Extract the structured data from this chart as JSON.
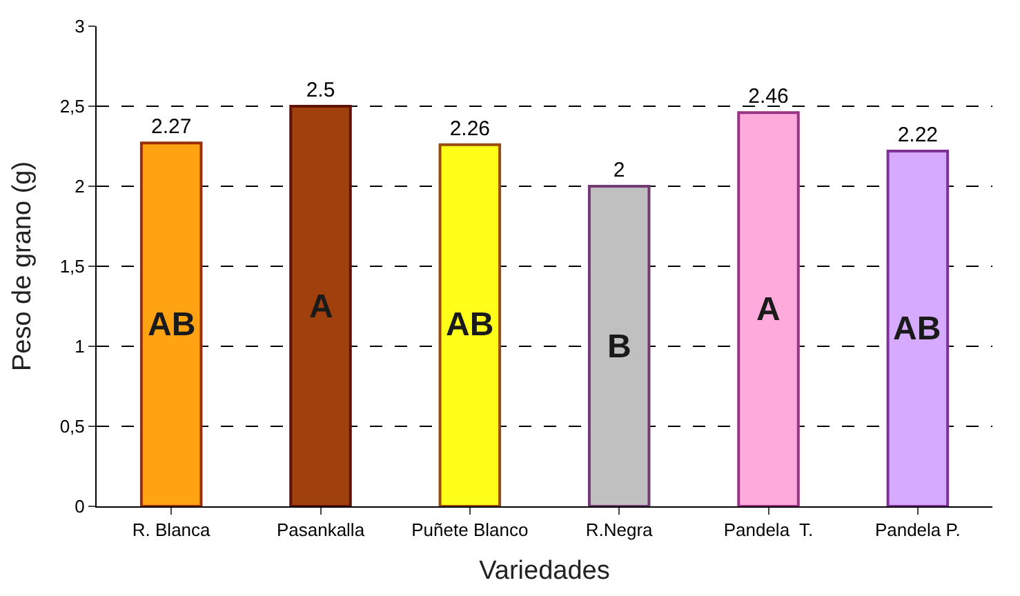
{
  "chart_data": {
    "type": "bar",
    "categories": [
      "R. Blanca",
      "Pasankalla",
      "Puñete Blanco",
      "R.Negra",
      "Pandela  T.",
      "Pandela P."
    ],
    "values": [
      2.27,
      2.5,
      2.26,
      2,
      2.46,
      2.22
    ],
    "colors": [
      "#ffa312",
      "#a0410d",
      "#ffff1a",
      "#c0c0c0",
      "#ffaadc",
      "#d5aaff"
    ],
    "xlabel": "Variedades",
    "ylabel": "Peso de grano (g)",
    "ylim": [
      0,
      3
    ],
    "yticks": [
      0,
      {
        "value": 0.5,
        "label": "0,5"
      },
      1,
      {
        "value": 1.5,
        "label": "1,5"
      },
      2,
      {
        "value": 2.5,
        "label": "2,5"
      },
      3
    ],
    "grid": "y",
    "data_labels": true,
    "legend": false,
    "annotations": [
      "AB",
      "A",
      "AB",
      "B",
      "A",
      "AB"
    ]
  }
}
